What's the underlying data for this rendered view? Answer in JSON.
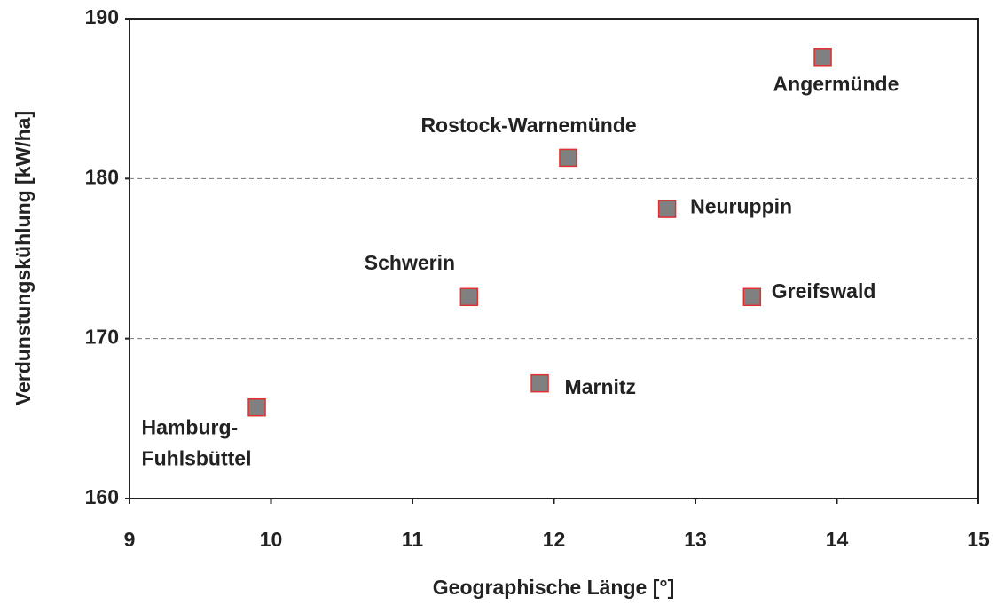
{
  "chart_data": {
    "type": "scatter",
    "xlabel": "Geographische Länge [°]",
    "ylabel": "Verdunstungskühlung [kW/ha]",
    "labels": [
      [
        "Hamburg-",
        "Fuhlsbüttel"
      ],
      [
        "Schwerin"
      ],
      [
        "Marnitz"
      ],
      [
        "Rostock-Warnemünde"
      ],
      [
        "Neuruppin"
      ],
      [
        "Greifswald"
      ],
      [
        "Angermünde"
      ]
    ],
    "x": [
      9.9,
      11.4,
      11.9,
      12.1,
      12.8,
      13.4,
      13.9
    ],
    "values": [
      165.7,
      172.6,
      167.2,
      181.3,
      178.1,
      172.6,
      187.6
    ],
    "color": "#808080",
    "edgecolor": "#e03030",
    "xlim": [
      9,
      15
    ],
    "xticks": [
      9,
      10,
      11,
      12,
      13,
      14,
      15
    ],
    "ylim": [
      160,
      190
    ],
    "yticks": [
      160,
      170,
      180,
      190
    ],
    "grid": true
  }
}
